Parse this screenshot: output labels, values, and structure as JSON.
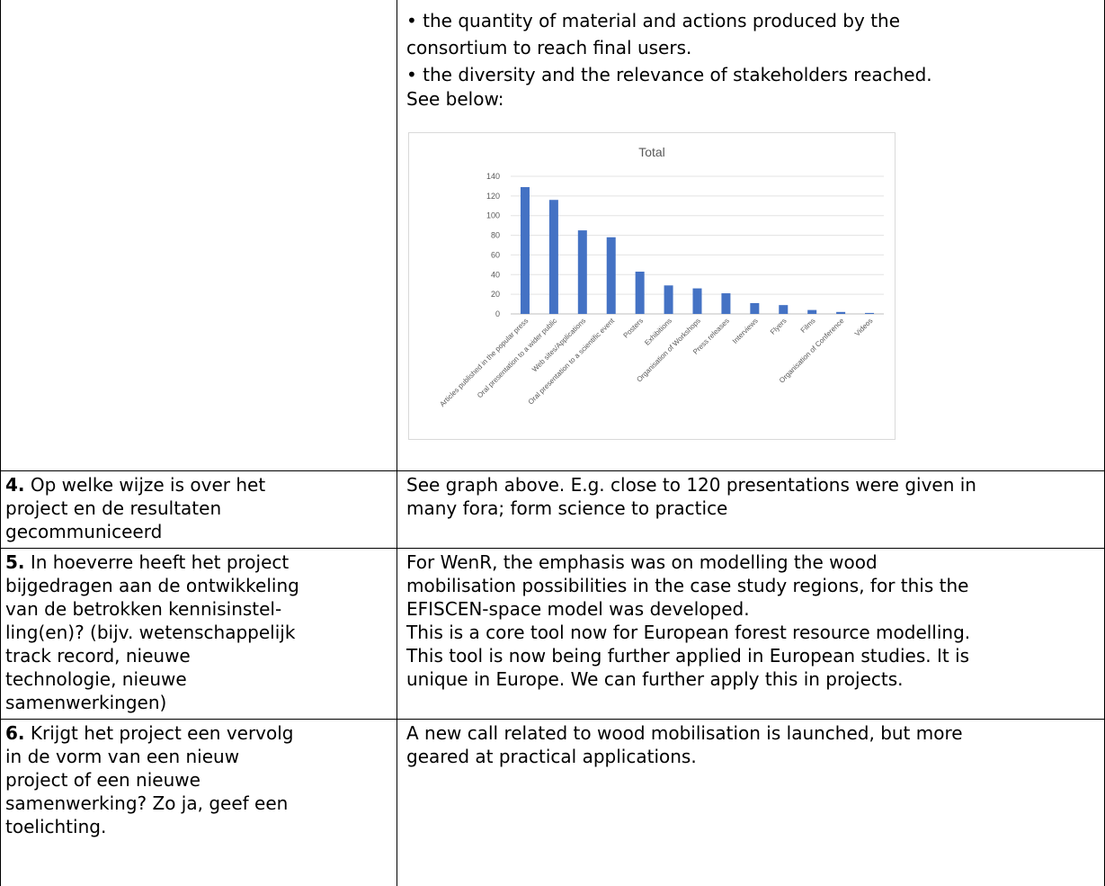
{
  "top_right": {
    "lines": [
      "• the quantity of material and actions produced by the",
      "consortium to reach final users.",
      "• the diversity and the relevance of stakeholders reached.",
      "See below:"
    ]
  },
  "chart_data": {
    "type": "bar",
    "title": "Total",
    "categories": [
      "Articles published in the popular press",
      "Oral presentation to a wider public",
      "Web sites/Applications",
      "Oral presentation to a scientific event",
      "Posters",
      "Exhibitions",
      "Organisation of Workshops",
      "Press releases",
      "Interviews",
      "Flyers",
      "Films",
      "Organisation of Conference",
      "Videos"
    ],
    "values": [
      129,
      116,
      85,
      78,
      43,
      29,
      26,
      21,
      11,
      9,
      4,
      2,
      1
    ],
    "ylim": [
      0,
      140
    ],
    "yticks": [
      "0",
      "20",
      "40",
      "60",
      "80",
      "100",
      "120",
      "140"
    ],
    "grid": true,
    "bar_color": "#4472c4",
    "xlabel": "",
    "ylabel": ""
  },
  "rows": [
    {
      "question_num": "4.",
      "question_lines": [
        " Op welke wijze is over het",
        "project en de resultaten",
        "gecommuniceerd"
      ],
      "answer_lines": [
        "See graph above. E.g. close to 120 presentations were given in",
        "many fora; form science to practice"
      ]
    },
    {
      "question_num": "5.",
      "question_lines": [
        " In hoeverre heeft het project",
        "bijgedragen aan de ontwikkeling",
        "van de betrokken kennisinstel-",
        "ling(en)? (bijv. wetenschappelijk",
        "track record, nieuwe",
        "technologie, nieuwe",
        "samenwerkingen)"
      ],
      "answer_lines": [
        "For WenR, the emphasis was on modelling the wood",
        "mobilisation possibilities in the case study regions, for this the",
        "EFISCEN-space model was developed.",
        "This is a core tool now for European forest resource modelling.",
        "This tool is now being further applied in European studies. It is",
        "unique in Europe. We can further apply this in projects."
      ]
    },
    {
      "question_num": "6.",
      "question_lines": [
        " Krijgt het project een vervolg",
        "in de vorm van een nieuw",
        "project of een nieuwe",
        "samenwerking? Zo ja, geef een",
        "toelichting."
      ],
      "answer_lines": [
        "A new call related to wood mobilisation is launched, but more",
        "geared at practical applications."
      ]
    }
  ]
}
